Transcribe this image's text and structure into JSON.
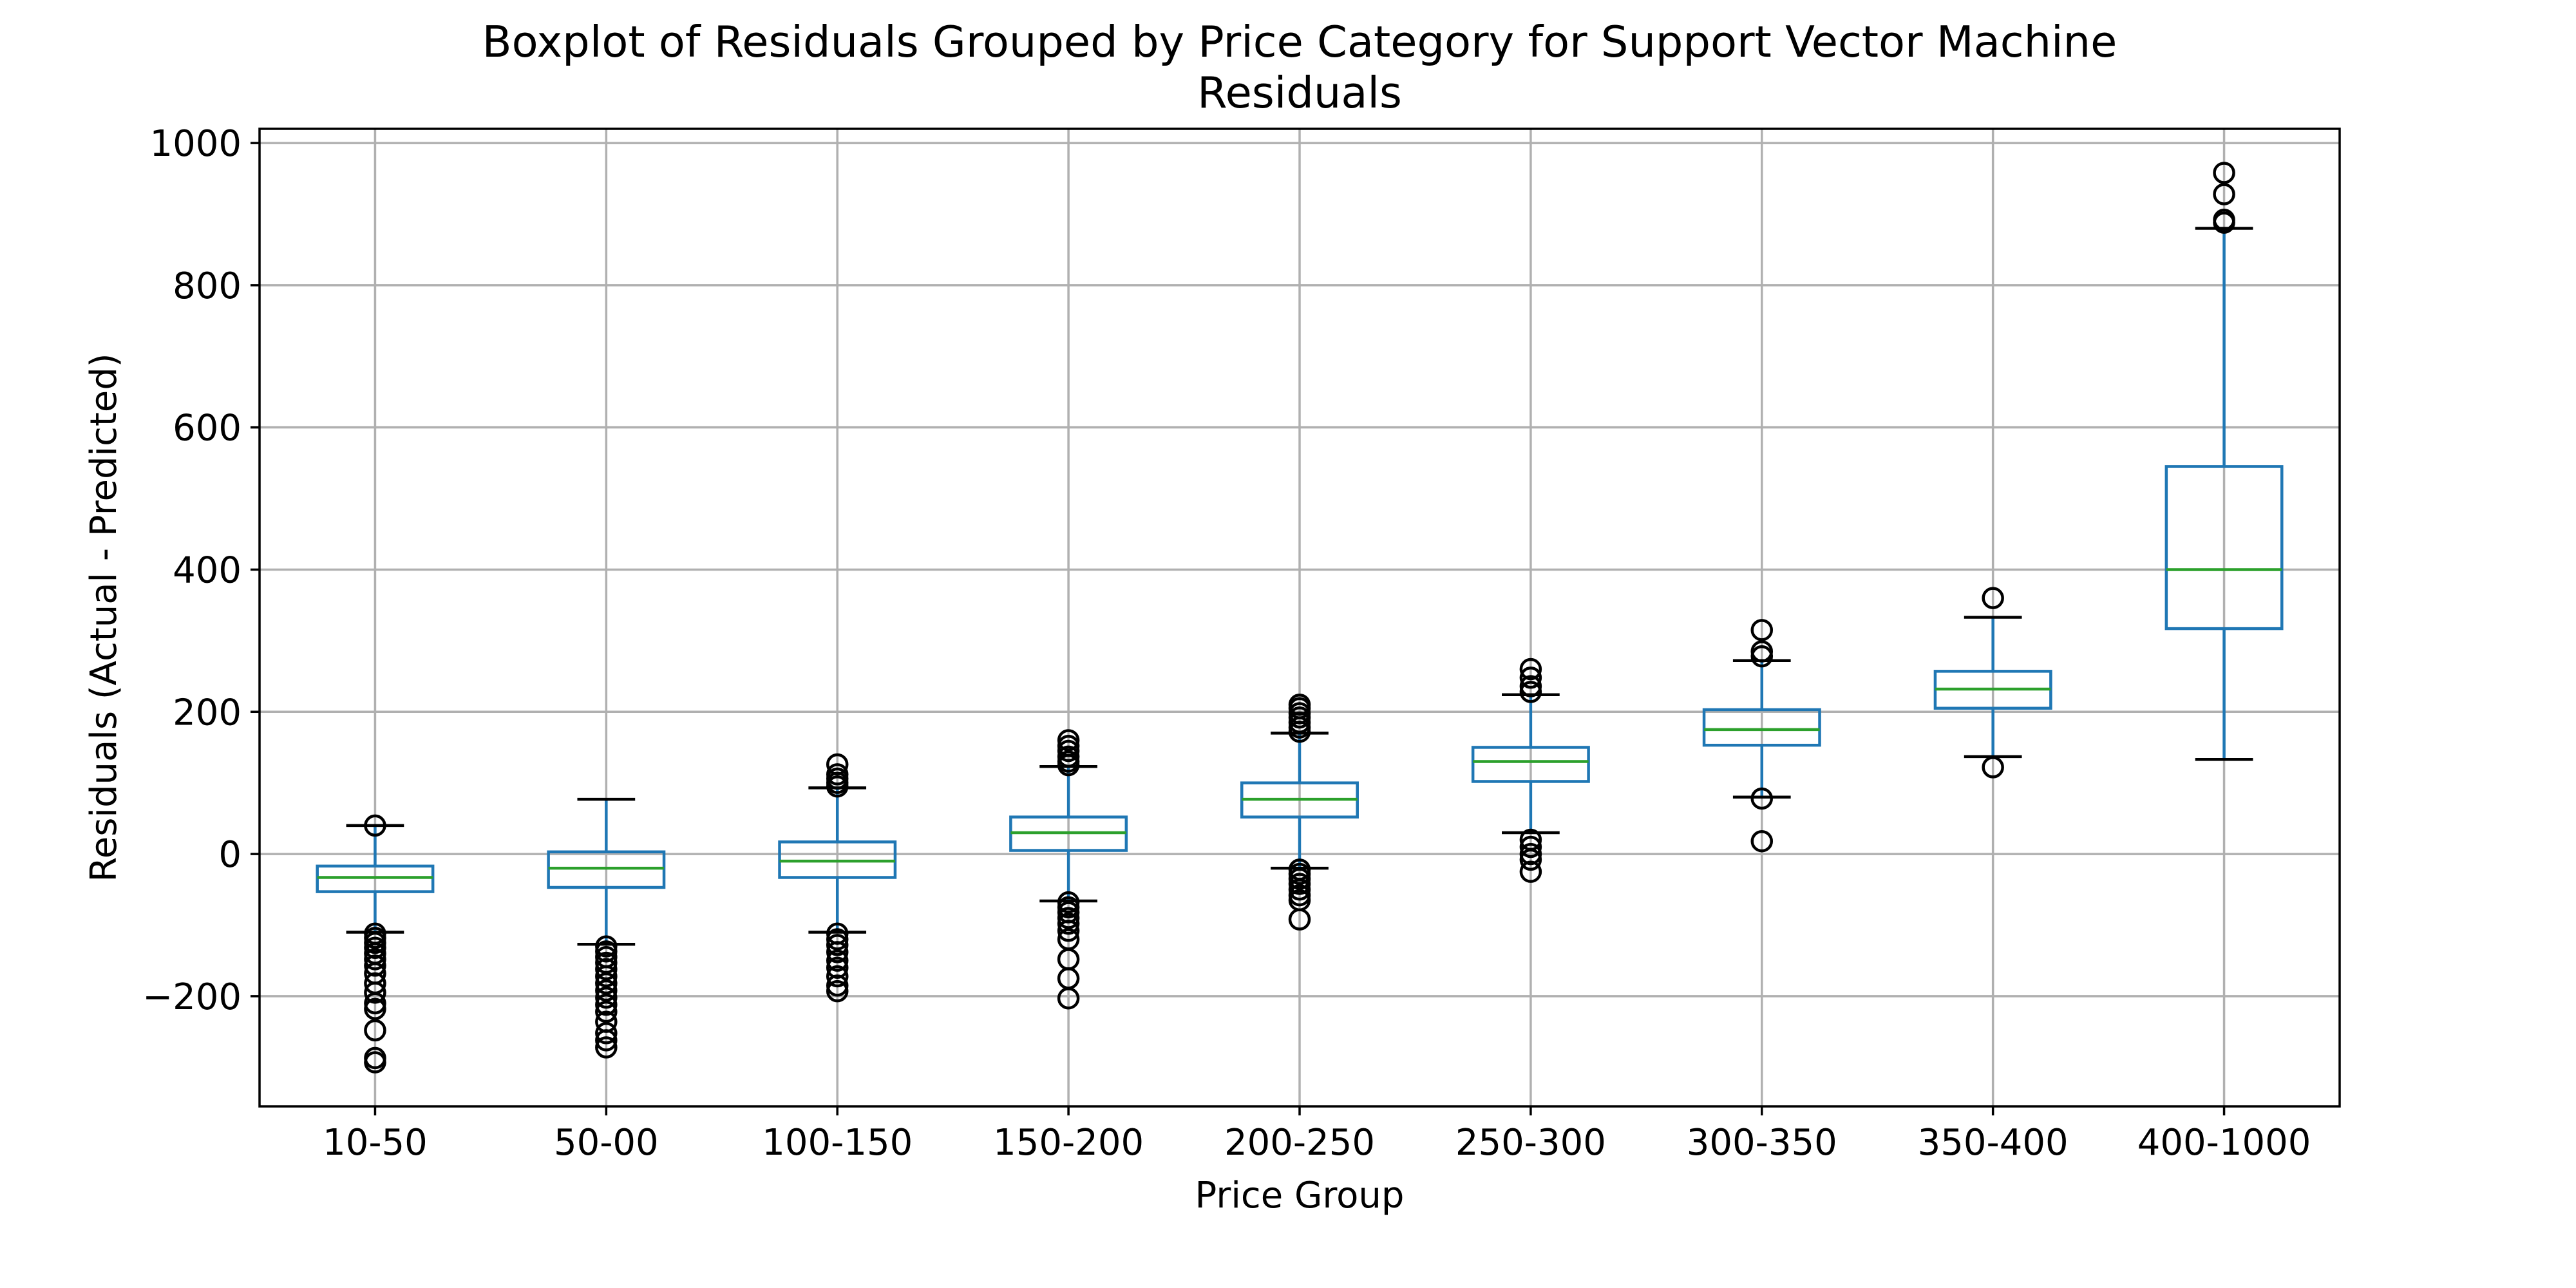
{
  "chart_data": {
    "type": "boxplot",
    "title": "Boxplot of Residuals Grouped by Price Category for Support Vector Machine",
    "subtitle": "Residuals",
    "xlabel": "Price Group",
    "ylabel": "Residuals (Actual - Predicted)",
    "ylim": [
      -355,
      1020
    ],
    "yticks": [
      -200,
      0,
      200,
      400,
      600,
      800,
      1000
    ],
    "ytick_labels": [
      "−200",
      "0",
      "200",
      "400",
      "600",
      "800",
      "1000"
    ],
    "grid": true,
    "colors": {
      "box": "#1f77b4",
      "median": "#2ca02c",
      "flier": "#000000",
      "grid": "#b0b0b0"
    },
    "categories": [
      "10-50",
      "50-00",
      "100-150",
      "150-200",
      "200-250",
      "250-300",
      "300-350",
      "350-400",
      "400-1000"
    ],
    "boxes": [
      {
        "category": "10-50",
        "whisker_low": -110,
        "q1": -53,
        "median": -33,
        "q3": -17,
        "whisker_high": 40,
        "fliers": [
          40,
          -112,
          -118,
          -125,
          -132,
          -140,
          -148,
          -157,
          -168,
          -182,
          -195,
          -210,
          -218,
          -248,
          -287,
          -293
        ]
      },
      {
        "category": "50-00",
        "whisker_low": -127,
        "q1": -47,
        "median": -20,
        "q3": 3,
        "whisker_high": 77,
        "fliers": [
          -130,
          -137,
          -145,
          -153,
          -162,
          -172,
          -182,
          -192,
          -202,
          -212,
          -222,
          -236,
          -252,
          -262,
          -272
        ]
      },
      {
        "category": "100-150",
        "whisker_low": -110,
        "q1": -33,
        "median": -10,
        "q3": 17,
        "whisker_high": 93,
        "fliers": [
          95,
          100,
          106,
          112,
          126,
          -112,
          -120,
          -128,
          -138,
          -150,
          -160,
          -172,
          -185,
          -193
        ]
      },
      {
        "category": "150-200",
        "whisker_low": -66,
        "q1": 5,
        "median": 30,
        "q3": 52,
        "whisker_high": 123,
        "fliers": [
          125,
          130,
          137,
          145,
          152,
          160,
          -68,
          -75,
          -82,
          -90,
          -98,
          -108,
          -120,
          -148,
          -175,
          -203
        ]
      },
      {
        "category": "200-250",
        "whisker_low": -20,
        "q1": 52,
        "median": 77,
        "q3": 100,
        "whisker_high": 170,
        "fliers": [
          172,
          178,
          185,
          192,
          198,
          205,
          210,
          -22,
          -28,
          -35,
          -42,
          -50,
          -58,
          -65,
          -92
        ]
      },
      {
        "category": "250-300",
        "whisker_low": 30,
        "q1": 102,
        "median": 130,
        "q3": 150,
        "whisker_high": 224,
        "fliers": [
          228,
          236,
          248,
          260,
          20,
          10,
          0,
          -8,
          -25
        ]
      },
      {
        "category": "300-350",
        "whisker_low": 80,
        "q1": 153,
        "median": 175,
        "q3": 203,
        "whisker_high": 272,
        "fliers": [
          278,
          285,
          315,
          78,
          18
        ]
      },
      {
        "category": "350-400",
        "whisker_low": 137,
        "q1": 205,
        "median": 232,
        "q3": 257,
        "whisker_high": 333,
        "fliers": [
          360,
          122
        ]
      },
      {
        "category": "400-1000",
        "whisker_low": 133,
        "q1": 317,
        "median": 400,
        "q3": 545,
        "whisker_high": 880,
        "fliers": [
          888,
          892,
          928,
          958
        ]
      }
    ]
  }
}
